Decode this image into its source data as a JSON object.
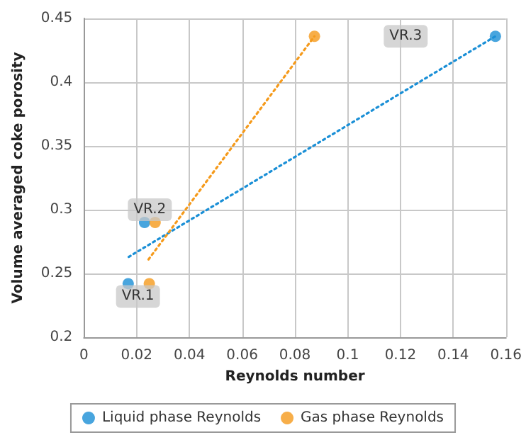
{
  "chart_data": {
    "type": "scatter",
    "xlabel": "Reynolds number",
    "ylabel": "Volume averaged coke porosity",
    "series": [
      {
        "name": "Liquid phase Reynolds",
        "color": "#1a8fd6",
        "x": [
          0.0168,
          0.023,
          0.156
        ],
        "values": [
          0.242,
          0.29,
          0.436
        ]
      },
      {
        "name": "Gas phase Reynolds",
        "color": "#f59a1b",
        "x": [
          0.0248,
          0.027,
          0.0874
        ],
        "values": [
          0.242,
          0.29,
          0.436
        ]
      },
      {
        "type": "line",
        "color": "#1a8fd6",
        "line_style": "dotted",
        "marker": "none",
        "x": [
          0.017,
          0.156
        ],
        "values": [
          0.263,
          0.436
        ]
      },
      {
        "type": "line",
        "color": "#f59a1b",
        "line_style": "dotted",
        "marker": "none",
        "x": [
          0.0245,
          0.0874
        ],
        "values": [
          0.261,
          0.436
        ]
      }
    ],
    "annotations": [
      {
        "text": "VR.1",
        "x": 0.0205,
        "y": 0.232
      },
      {
        "text": "VR.2",
        "x": 0.025,
        "y": 0.3
      },
      {
        "text": "VR.3",
        "x": 0.122,
        "y": 0.436
      }
    ],
    "xlim": [
      0,
      0.16
    ],
    "xticks": [
      0,
      0.02,
      0.04,
      0.06,
      0.08,
      0.1,
      0.12,
      0.14,
      0.16
    ],
    "ylim": [
      0.2,
      0.45
    ],
    "yticks": [
      0.2,
      0.25,
      0.3,
      0.35,
      0.4,
      0.45
    ],
    "grid": true,
    "legend": "bottom",
    "marker": "circle"
  }
}
